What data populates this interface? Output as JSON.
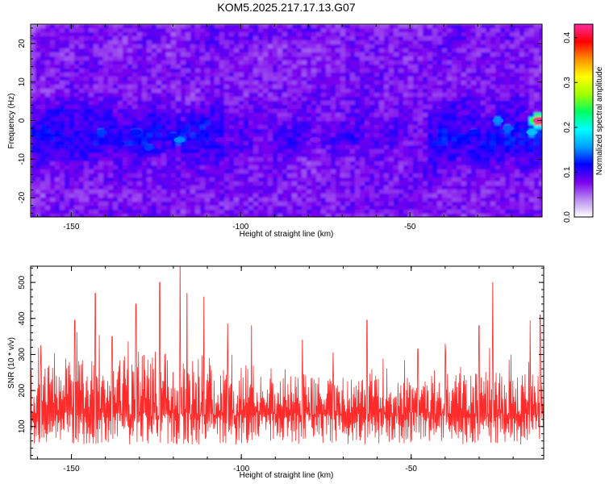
{
  "figure": {
    "title": "KOM5.2025.217.17.13.G07"
  },
  "chart_data": [
    {
      "type": "heatmap",
      "xlabel": "Height of straight line (km)",
      "ylabel": "Frequency (Hz)",
      "xlim": [
        -162,
        -11
      ],
      "ylim": [
        -25,
        25
      ],
      "x_ticks": [
        -150,
        -100,
        -50
      ],
      "y_ticks": [
        -20,
        -10,
        0,
        10,
        20
      ],
      "colorbar": {
        "label": "Normalized spectral amplitude",
        "ticks": [
          0.0,
          0.1,
          0.2,
          0.3,
          0.4
        ],
        "range": [
          0.0,
          0.43
        ],
        "colors": [
          "#ffffff",
          "#b98cf0",
          "#7a00ee",
          "#0000ff",
          "#00a0ff",
          "#00ffff",
          "#00ff60",
          "#a0ff00",
          "#ffff00",
          "#ff9000",
          "#ff0000",
          "#ff2aa0"
        ]
      },
      "hotspots": [
        {
          "x": -151,
          "y": 2,
          "v": 0.1
        },
        {
          "x": -148,
          "y": -2,
          "v": 0.09
        },
        {
          "x": -141,
          "y": -3,
          "v": 0.13
        },
        {
          "x": -136,
          "y": -6,
          "v": 0.11
        },
        {
          "x": -131,
          "y": -3,
          "v": 0.12
        },
        {
          "x": -127,
          "y": -7,
          "v": 0.13
        },
        {
          "x": -125,
          "y": -8,
          "v": 0.11
        },
        {
          "x": -120,
          "y": -4,
          "v": 0.12
        },
        {
          "x": -118,
          "y": -5,
          "v": 0.15
        },
        {
          "x": -113,
          "y": -6,
          "v": 0.1
        },
        {
          "x": -106,
          "y": -5,
          "v": 0.08
        },
        {
          "x": -92,
          "y": -8,
          "v": 0.08
        },
        {
          "x": -78,
          "y": -5,
          "v": 0.07
        },
        {
          "x": -40,
          "y": 4,
          "v": 0.09
        },
        {
          "x": -34,
          "y": 2,
          "v": 0.08
        },
        {
          "x": -31,
          "y": -3,
          "v": 0.12
        },
        {
          "x": -24,
          "y": 0,
          "v": 0.15
        },
        {
          "x": -21,
          "y": -2,
          "v": 0.14
        },
        {
          "x": -17,
          "y": 3,
          "v": 0.1
        },
        {
          "x": -14,
          "y": -3,
          "v": 0.17
        },
        {
          "x": -13,
          "y": 0,
          "v": 0.25
        },
        {
          "x": -12,
          "y": 0,
          "v": 0.43
        }
      ]
    },
    {
      "type": "line",
      "xlabel": "Height of straight line (km)",
      "ylabel": "SNR (10 * v/v)",
      "xlim": [
        -162,
        -11
      ],
      "ylim": [
        10,
        545
      ],
      "x_ticks": [
        -150,
        -100,
        -50
      ],
      "y_ticks": [
        100,
        200,
        300,
        400,
        500
      ],
      "color": "#ff2a2a",
      "baseline": 130,
      "peaks": [
        {
          "x": -159,
          "y": 325
        },
        {
          "x": -149,
          "y": 395
        },
        {
          "x": -143,
          "y": 470
        },
        {
          "x": -138,
          "y": 350
        },
        {
          "x": -131,
          "y": 440
        },
        {
          "x": -124,
          "y": 500
        },
        {
          "x": -118,
          "y": 545
        },
        {
          "x": -116,
          "y": 470
        },
        {
          "x": -111,
          "y": 460
        },
        {
          "x": -104,
          "y": 385
        },
        {
          "x": -97,
          "y": 380
        },
        {
          "x": -82,
          "y": 340
        },
        {
          "x": -73,
          "y": 305
        },
        {
          "x": -63,
          "y": 395
        },
        {
          "x": -48,
          "y": 315
        },
        {
          "x": -40,
          "y": 330
        },
        {
          "x": -30,
          "y": 380
        },
        {
          "x": -26,
          "y": 500
        },
        {
          "x": -15,
          "y": 395
        },
        {
          "x": -12,
          "y": 410
        }
      ]
    }
  ]
}
